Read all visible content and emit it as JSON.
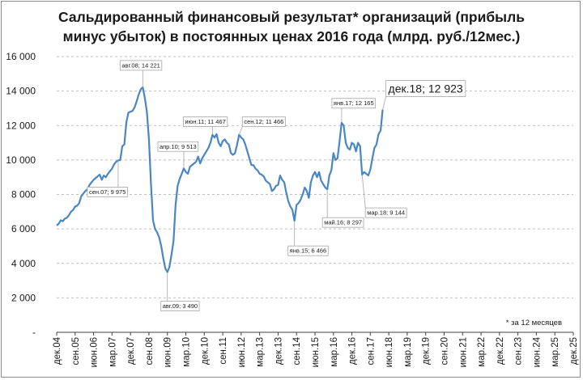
{
  "chart_data": {
    "type": "line",
    "title_lines": [
      "Сальдированный финансовый результат* организаций (прибыль",
      "минус убыток) в постоянных ценах 2016 года (млрд. руб./12мес.)"
    ],
    "footnote": "* за 12 месяцев",
    "ylim": [
      0,
      16000
    ],
    "yticks": [
      {
        "value": 0,
        "label": "-"
      },
      {
        "value": 2000,
        "label": "2 000"
      },
      {
        "value": 4000,
        "label": "4 000"
      },
      {
        "value": 6000,
        "label": "6 000"
      },
      {
        "value": 8000,
        "label": "8 000"
      },
      {
        "value": 10000,
        "label": "10 000"
      },
      {
        "value": 12000,
        "label": "12 000"
      },
      {
        "value": 14000,
        "label": "14 000"
      },
      {
        "value": 16000,
        "label": "16 000"
      }
    ],
    "x_unit": "months since дек.04",
    "xlim": [
      0,
      252
    ],
    "xticks": [
      {
        "m": 0,
        "label": "дек.04"
      },
      {
        "m": 9,
        "label": "сен.05"
      },
      {
        "m": 18,
        "label": "июн.06"
      },
      {
        "m": 27,
        "label": "мар.07"
      },
      {
        "m": 36,
        "label": "дек.07"
      },
      {
        "m": 45,
        "label": "сен.08"
      },
      {
        "m": 54,
        "label": "июн.09"
      },
      {
        "m": 63,
        "label": "мар.10"
      },
      {
        "m": 72,
        "label": "дек.10"
      },
      {
        "m": 81,
        "label": "сен.11"
      },
      {
        "m": 90,
        "label": "июн.12"
      },
      {
        "m": 99,
        "label": "мар.13"
      },
      {
        "m": 108,
        "label": "дек.13"
      },
      {
        "m": 117,
        "label": "сен.14"
      },
      {
        "m": 126,
        "label": "июн.15"
      },
      {
        "m": 135,
        "label": "мар.16"
      },
      {
        "m": 144,
        "label": "дек.16"
      },
      {
        "m": 153,
        "label": "сен.17"
      },
      {
        "m": 162,
        "label": "июн.18"
      },
      {
        "m": 171,
        "label": "мар.19"
      },
      {
        "m": 180,
        "label": "дек.19"
      },
      {
        "m": 189,
        "label": "сен.20"
      },
      {
        "m": 198,
        "label": "июн.21"
      },
      {
        "m": 207,
        "label": "мар.22"
      },
      {
        "m": 216,
        "label": "дек.22"
      },
      {
        "m": 225,
        "label": "сен.23"
      },
      {
        "m": 234,
        "label": "июн.24"
      },
      {
        "m": 243,
        "label": "мар.25"
      },
      {
        "m": 252,
        "label": "дек.25"
      }
    ],
    "series": [
      {
        "color": "#4a86c5",
        "points": [
          [
            0,
            6200
          ],
          [
            1,
            6300
          ],
          [
            2,
            6500
          ],
          [
            3,
            6450
          ],
          [
            4,
            6600
          ],
          [
            5,
            6650
          ],
          [
            6,
            6800
          ],
          [
            7,
            7000
          ],
          [
            8,
            7100
          ],
          [
            9,
            7300
          ],
          [
            10,
            7350
          ],
          [
            11,
            7500
          ],
          [
            12,
            7900
          ],
          [
            13,
            8050
          ],
          [
            14,
            8200
          ],
          [
            15,
            8300
          ],
          [
            16,
            8550
          ],
          [
            17,
            8700
          ],
          [
            18,
            8850
          ],
          [
            19,
            8950
          ],
          [
            20,
            9050
          ],
          [
            21,
            9150
          ],
          [
            22,
            8850
          ],
          [
            23,
            9100
          ],
          [
            24,
            9000
          ],
          [
            25,
            9200
          ],
          [
            26,
            9350
          ],
          [
            27,
            9500
          ],
          [
            28,
            9750
          ],
          [
            29,
            9900
          ],
          [
            30,
            9975
          ],
          [
            31,
            10000
          ],
          [
            32,
            10800
          ],
          [
            33,
            10900
          ],
          [
            34,
            12200
          ],
          [
            35,
            12750
          ],
          [
            36,
            12800
          ],
          [
            37,
            12850
          ],
          [
            38,
            13050
          ],
          [
            39,
            13400
          ],
          [
            40,
            13800
          ],
          [
            41,
            14100
          ],
          [
            42,
            14221
          ],
          [
            43,
            13600
          ],
          [
            44,
            12800
          ],
          [
            45,
            11200
          ],
          [
            46,
            8600
          ],
          [
            47,
            6500
          ],
          [
            48,
            6000
          ],
          [
            49,
            5800
          ],
          [
            50,
            5500
          ],
          [
            51,
            5000
          ],
          [
            52,
            4300
          ],
          [
            53,
            3700
          ],
          [
            54,
            3490
          ],
          [
            55,
            3800
          ],
          [
            56,
            4500
          ],
          [
            57,
            5300
          ],
          [
            58,
            7400
          ],
          [
            59,
            8500
          ],
          [
            60,
            8900
          ],
          [
            61,
            9200
          ],
          [
            62,
            9513
          ],
          [
            63,
            9300
          ],
          [
            64,
            9200
          ],
          [
            65,
            9600
          ],
          [
            66,
            9700
          ],
          [
            67,
            9800
          ],
          [
            68,
            9900
          ],
          [
            69,
            10200
          ],
          [
            70,
            9800
          ],
          [
            71,
            10100
          ],
          [
            72,
            10300
          ],
          [
            73,
            10500
          ],
          [
            74,
            10700
          ],
          [
            75,
            11000
          ],
          [
            76,
            11467
          ],
          [
            77,
            11300
          ],
          [
            78,
            11500
          ],
          [
            79,
            11000
          ],
          [
            80,
            10800
          ],
          [
            81,
            11100
          ],
          [
            82,
            11200
          ],
          [
            83,
            11000
          ],
          [
            84,
            10900
          ],
          [
            85,
            10400
          ],
          [
            86,
            10300
          ],
          [
            87,
            10400
          ],
          [
            88,
            10900
          ],
          [
            89,
            11466
          ],
          [
            90,
            11300
          ],
          [
            91,
            11200
          ],
          [
            92,
            10900
          ],
          [
            93,
            10500
          ],
          [
            94,
            10100
          ],
          [
            95,
            9700
          ],
          [
            96,
            9700
          ],
          [
            97,
            9500
          ],
          [
            98,
            9400
          ],
          [
            99,
            9200
          ],
          [
            100,
            9150
          ],
          [
            101,
            9050
          ],
          [
            102,
            8800
          ],
          [
            103,
            8700
          ],
          [
            104,
            8600
          ],
          [
            105,
            8200
          ],
          [
            106,
            8300
          ],
          [
            107,
            8500
          ],
          [
            108,
            8550
          ],
          [
            109,
            9100
          ],
          [
            110,
            8850
          ],
          [
            111,
            8700
          ],
          [
            112,
            8100
          ],
          [
            113,
            7600
          ],
          [
            114,
            7300
          ],
          [
            115,
            7100
          ],
          [
            116,
            6466
          ],
          [
            117,
            7400
          ],
          [
            118,
            7500
          ],
          [
            119,
            7700
          ],
          [
            120,
            8000
          ],
          [
            121,
            8400
          ],
          [
            122,
            8200
          ],
          [
            123,
            7800
          ],
          [
            124,
            8700
          ],
          [
            125,
            9100
          ],
          [
            126,
            9300
          ],
          [
            127,
            9000
          ],
          [
            128,
            9300
          ],
          [
            129,
            8800
          ],
          [
            130,
            8600
          ],
          [
            131,
            8400
          ],
          [
            132,
            8297
          ],
          [
            133,
            9100
          ],
          [
            134,
            9400
          ],
          [
            135,
            10400
          ],
          [
            136,
            10000
          ],
          [
            137,
            10100
          ],
          [
            138,
            11100
          ],
          [
            139,
            12165
          ],
          [
            140,
            12000
          ],
          [
            141,
            11000
          ],
          [
            142,
            10700
          ],
          [
            143,
            10600
          ],
          [
            144,
            11000
          ],
          [
            145,
            10900
          ],
          [
            146,
            10500
          ],
          [
            147,
            11000
          ],
          [
            148,
            10800
          ],
          [
            149,
            9144
          ],
          [
            150,
            9300
          ],
          [
            151,
            9200
          ],
          [
            152,
            9100
          ],
          [
            153,
            9450
          ],
          [
            154,
            10100
          ],
          [
            155,
            10700
          ],
          [
            156,
            10900
          ],
          [
            157,
            11500
          ],
          [
            158,
            11700
          ],
          [
            159,
            12923
          ]
        ]
      }
    ],
    "annotations": [
      {
        "text": "авг.08; 14 221",
        "m": 42,
        "v": 14221,
        "big": false
      },
      {
        "text": "сен.07; 9 975",
        "m": 30,
        "v": 9975,
        "big": false
      },
      {
        "text": "авг.09; 3 490",
        "m": 54,
        "v": 3490,
        "big": false
      },
      {
        "text": "апр.10; 9 513",
        "m": 62,
        "v": 9513,
        "big": false
      },
      {
        "text": "июн.11; 11 467",
        "m": 76,
        "v": 11467,
        "big": false
      },
      {
        "text": "сен.12; 11 466",
        "m": 89,
        "v": 11466,
        "big": false
      },
      {
        "text": "янв.15; 6 466",
        "m": 116,
        "v": 6466,
        "big": false
      },
      {
        "text": "май.16; 8 297",
        "m": 132,
        "v": 8297,
        "big": false
      },
      {
        "text": "янв.17; 12 165",
        "m": 139,
        "v": 12165,
        "big": false
      },
      {
        "text": "мар.18; 9 144",
        "m": 149,
        "v": 9144,
        "big": false
      },
      {
        "text": "дек.18;  12 923",
        "m": 159,
        "v": 12923,
        "big": true
      }
    ]
  }
}
